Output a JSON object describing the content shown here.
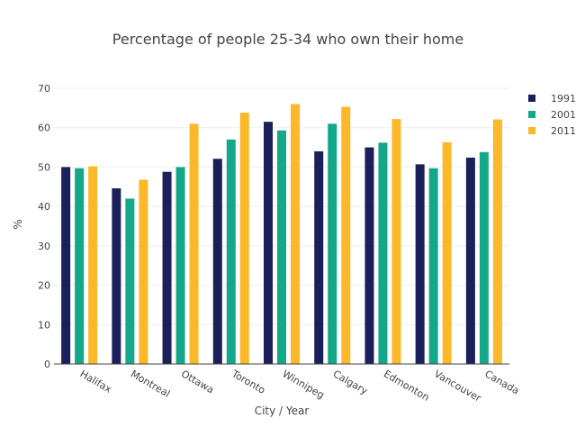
{
  "chart_data": {
    "type": "bar",
    "title": "Percentage of people 25-34 who own their home",
    "xlabel": "City / Year",
    "ylabel": "%",
    "ylim": [
      0,
      70
    ],
    "yticks": [
      0,
      10,
      20,
      30,
      40,
      50,
      60,
      70
    ],
    "grid": true,
    "legend_position": "top-right",
    "categories": [
      "Halifax",
      "Montreal",
      "Ottawa",
      "Toronto",
      "Winnipeg",
      "Calgary",
      "Edmonton",
      "Vancouver",
      "Canada"
    ],
    "series": [
      {
        "name": "1991",
        "color": "#1b1f5a",
        "values": [
          50.0,
          44.6,
          48.8,
          52.1,
          61.5,
          54.0,
          55.0,
          50.7,
          52.4
        ]
      },
      {
        "name": "2001",
        "color": "#13a88a",
        "values": [
          49.7,
          42.0,
          50.0,
          57.0,
          59.3,
          61.0,
          56.2,
          49.7,
          53.8
        ]
      },
      {
        "name": "2011",
        "color": "#fbb829",
        "values": [
          50.2,
          46.8,
          61.0,
          63.8,
          66.0,
          65.3,
          62.2,
          56.3,
          62.1
        ]
      }
    ]
  }
}
